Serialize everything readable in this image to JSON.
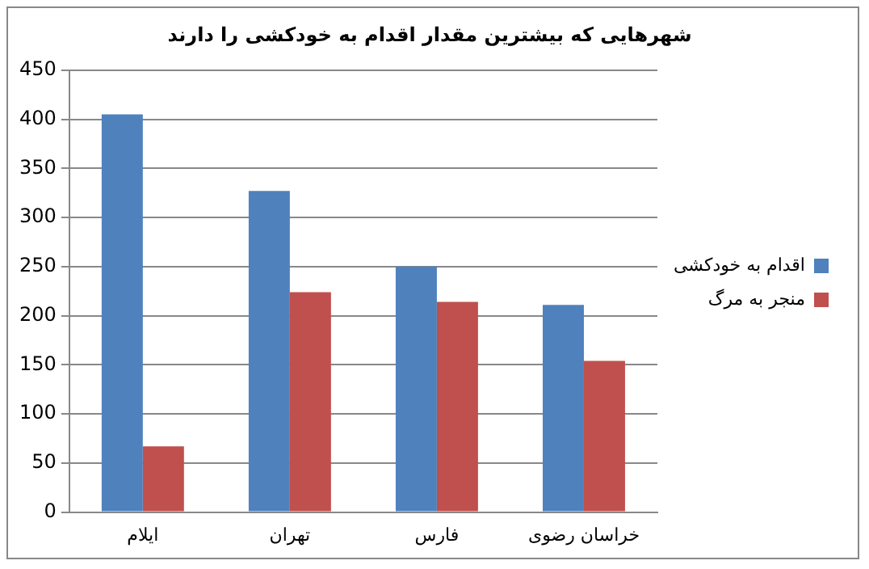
{
  "chart_data": {
    "type": "bar",
    "title": "شهرهایی که بیشترین مقدار اقدام به خودکشی را دارند",
    "categories": [
      "ایلام",
      "تهران",
      "فارس",
      "خراسان رضوی"
    ],
    "series": [
      {
        "name": "اقدام به خودکشی",
        "color": "#4f81bd",
        "values": [
          405,
          327,
          250,
          211
        ]
      },
      {
        "name": "منجر به مرگ",
        "color": "#c0504d",
        "values": [
          67,
          224,
          214,
          154
        ]
      }
    ],
    "ylim": [
      0,
      450
    ],
    "yticks": [
      0,
      50,
      100,
      150,
      200,
      250,
      300,
      350,
      400,
      450
    ],
    "grid": "y",
    "legend": "right"
  }
}
